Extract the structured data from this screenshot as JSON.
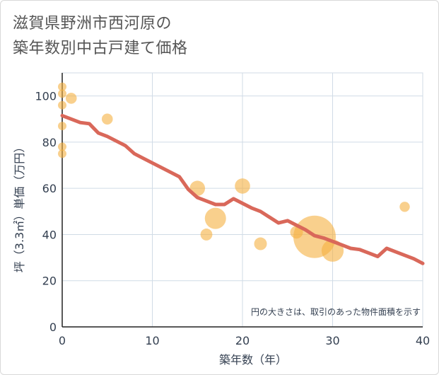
{
  "chart_data": {
    "type": "scatter",
    "title_lines": [
      "滋賀県野洲市西河原の",
      "築年数別中古戸建て価格"
    ],
    "xlabel": "築年数（年）",
    "ylabel": "坪（3.3㎡）単価（万円）",
    "xlim": [
      0,
      40
    ],
    "ylim": [
      0,
      110
    ],
    "xticks": [
      0,
      10,
      20,
      30,
      40
    ],
    "yticks": [
      0,
      20,
      40,
      60,
      80,
      100
    ],
    "grid": true,
    "note": "円の大きさは、取引のあった物件面積を示す",
    "colors": {
      "bubble": "#f5b041",
      "trend": "#d9685a",
      "grid": "#d0dbe6",
      "text": "#333f50"
    },
    "points": [
      {
        "x": 0,
        "y": 104,
        "size": 1
      },
      {
        "x": 0,
        "y": 101,
        "size": 1
      },
      {
        "x": 1,
        "y": 99,
        "size": 1.3
      },
      {
        "x": 0,
        "y": 96,
        "size": 1
      },
      {
        "x": 5,
        "y": 90,
        "size": 1.3
      },
      {
        "x": 0,
        "y": 87,
        "size": 1
      },
      {
        "x": 0,
        "y": 78,
        "size": 1
      },
      {
        "x": 0,
        "y": 75,
        "size": 1
      },
      {
        "x": 20,
        "y": 61,
        "size": 1.8
      },
      {
        "x": 15,
        "y": 60,
        "size": 1.8
      },
      {
        "x": 38,
        "y": 52,
        "size": 1.2
      },
      {
        "x": 17,
        "y": 47,
        "size": 2.5
      },
      {
        "x": 26,
        "y": 41,
        "size": 1.5
      },
      {
        "x": 16,
        "y": 40,
        "size": 1.4
      },
      {
        "x": 28,
        "y": 39,
        "size": 5
      },
      {
        "x": 22,
        "y": 36,
        "size": 1.5
      },
      {
        "x": 30,
        "y": 33,
        "size": 2.6
      }
    ],
    "series": [
      {
        "name": "trend",
        "x": [
          0,
          1,
          2,
          3,
          4,
          5,
          6,
          7,
          8,
          9,
          10,
          11,
          12,
          13,
          14,
          15,
          16,
          17,
          18,
          19,
          20,
          21,
          22,
          23,
          24,
          25,
          26,
          27,
          28,
          29,
          30,
          31,
          32,
          33,
          34,
          35,
          36,
          37,
          38,
          39,
          40
        ],
        "y": [
          91.5,
          90,
          88.5,
          88,
          84,
          82.5,
          80.5,
          78.5,
          75,
          73,
          71,
          69,
          67,
          65,
          59.5,
          56,
          54.5,
          53,
          53,
          55.5,
          53.5,
          51.5,
          50,
          47.5,
          45,
          46,
          44,
          42,
          39.5,
          38.5,
          37,
          35.5,
          34,
          33.5,
          32,
          30.5,
          34,
          32.5,
          31,
          29.5,
          27.5
        ]
      }
    ]
  }
}
